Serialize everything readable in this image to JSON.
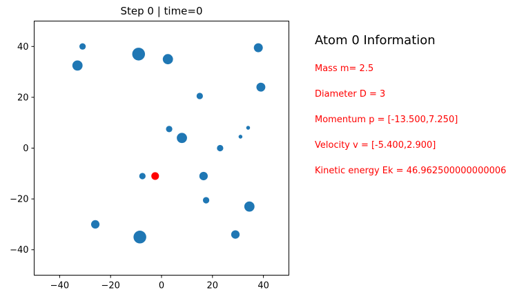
{
  "chart_data": {
    "type": "scatter",
    "title": "Step 0  |  time=0",
    "xlim": [
      -50,
      50
    ],
    "ylim": [
      -50,
      50
    ],
    "x_ticks": [
      -40,
      -20,
      0,
      20,
      40
    ],
    "y_ticks": [
      -40,
      -20,
      0,
      20,
      40
    ],
    "x_tick_labels": [
      "−40",
      "−20",
      "0",
      "20",
      "40"
    ],
    "y_tick_labels": [
      "−40",
      "−20",
      "0",
      "20",
      "40"
    ],
    "grid": false,
    "colors": {
      "atoms": "#1f77b4",
      "highlight": "#ff0000"
    },
    "highlight_index": 0,
    "points": [
      {
        "x": -2.5,
        "y": -11,
        "d": 3
      },
      {
        "x": -31,
        "y": 40,
        "d": 2.5
      },
      {
        "x": -33,
        "y": 32.5,
        "d": 4
      },
      {
        "x": -9,
        "y": 37,
        "d": 5
      },
      {
        "x": 2.5,
        "y": 35,
        "d": 4
      },
      {
        "x": 38,
        "y": 39.5,
        "d": 3.5
      },
      {
        "x": 39,
        "y": 24,
        "d": 3.5
      },
      {
        "x": 15,
        "y": 20.5,
        "d": 2.5
      },
      {
        "x": 3,
        "y": 7.5,
        "d": 2.5
      },
      {
        "x": 8,
        "y": 4,
        "d": 4
      },
      {
        "x": 23,
        "y": 0,
        "d": 2.5
      },
      {
        "x": 31,
        "y": 4.5,
        "d": 1.5
      },
      {
        "x": 34,
        "y": 8,
        "d": 1.5
      },
      {
        "x": -7.5,
        "y": -11,
        "d": 2.5
      },
      {
        "x": 16.5,
        "y": -11,
        "d": 3.3
      },
      {
        "x": 17.5,
        "y": -20.5,
        "d": 2.5
      },
      {
        "x": 34.5,
        "y": -23,
        "d": 4
      },
      {
        "x": -26,
        "y": -30,
        "d": 3.3
      },
      {
        "x": 29,
        "y": -34,
        "d": 3.3
      },
      {
        "x": -8.5,
        "y": -35,
        "d": 5
      }
    ]
  },
  "info": {
    "title": "Atom 0 Information",
    "color": "#ff0000",
    "mass": "Mass m= 2.5",
    "diameter": "Diameter D = 3",
    "momentum": "Momentum  p = [-13.500,7.250]",
    "velocity": "Velocity  v = [-5.400,2.900]",
    "kinetic": "Kinetic energy Ek = 46.962500000000006"
  }
}
